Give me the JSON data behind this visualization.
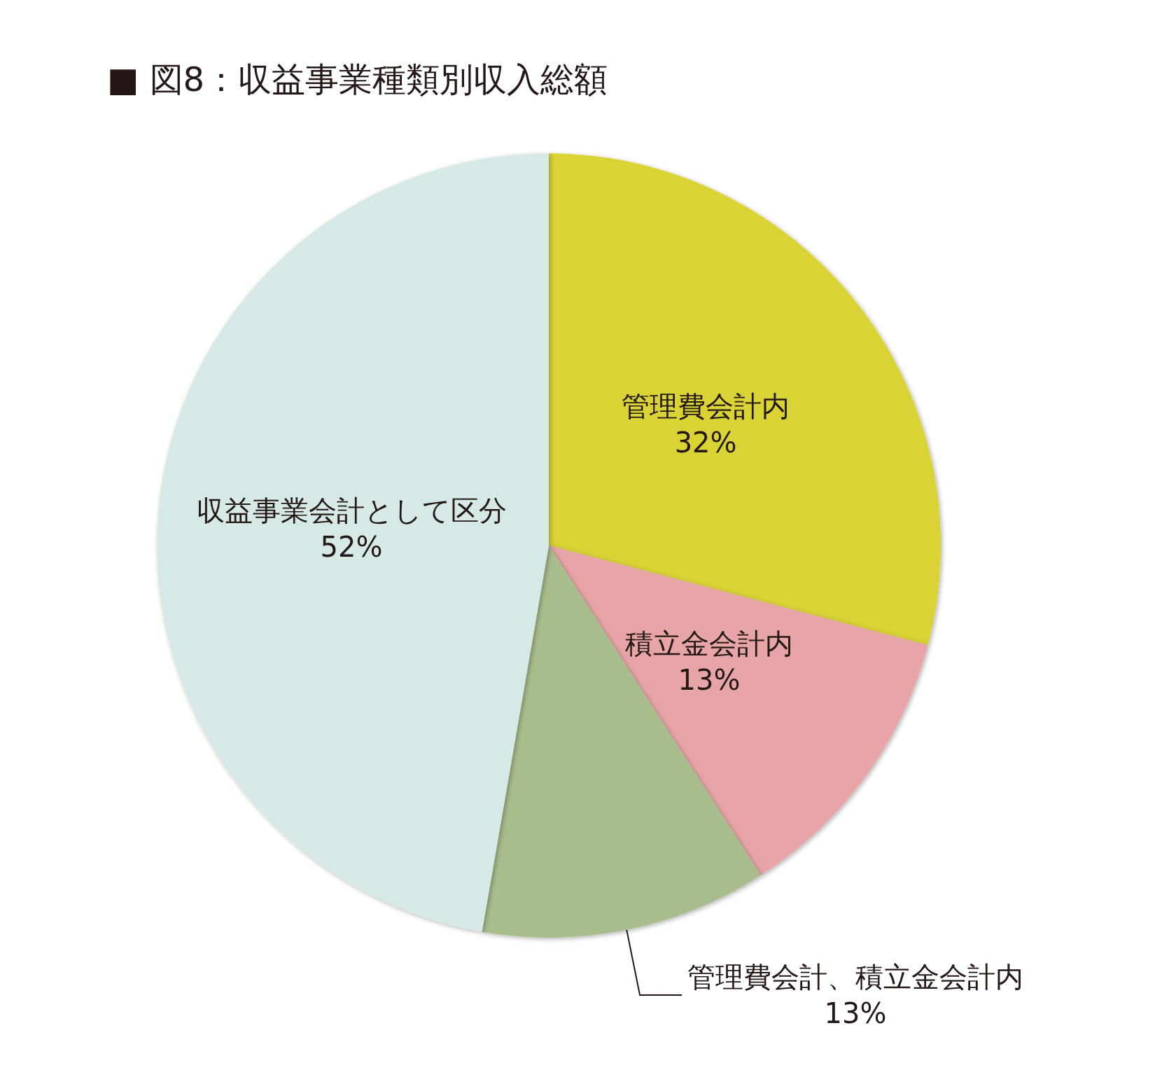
{
  "chart_data": {
    "type": "pie",
    "title": "■ 図8：収益事業種類別収入総額",
    "categories": [
      "管理費会計内",
      "積立金会計内",
      "管理費会計、積立金会計内",
      "収益事業会計として区分"
    ],
    "values": [
      32,
      13,
      13,
      52
    ],
    "value_labels": [
      "32%",
      "13%",
      "13%",
      "52%"
    ],
    "colors": [
      "#d9d336",
      "#e7a5a8",
      "#a9bc8c",
      "#d7e9e7"
    ]
  }
}
